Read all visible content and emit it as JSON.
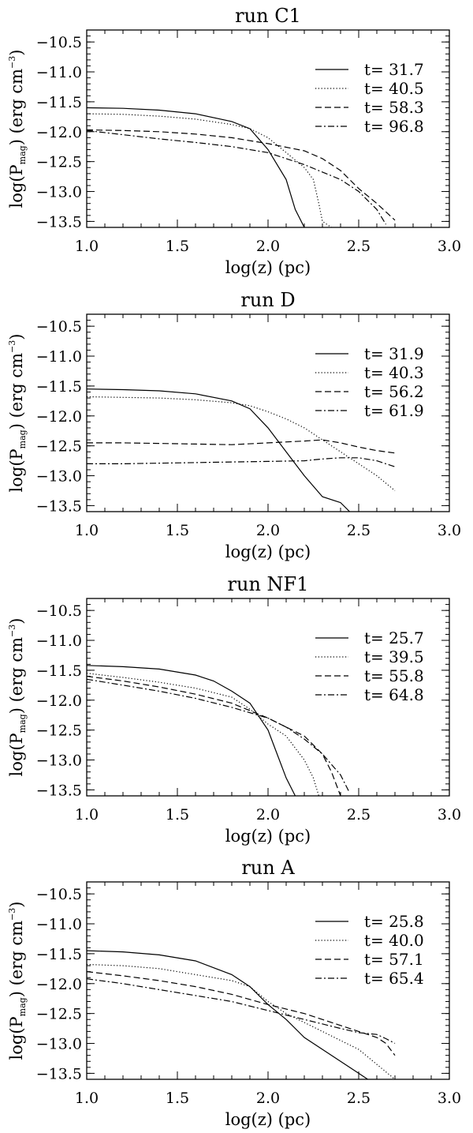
{
  "chart_data": [
    {
      "type": "line",
      "title": "run C1",
      "xlabel": "log(z) (pc)",
      "ylabel": {
        "pre": "log(P",
        "sub": "mag",
        "mid": ") (erg cm",
        "sup": "-3",
        "post": ")"
      },
      "xlim": [
        1.0,
        3.0
      ],
      "ylim": [
        -13.6,
        -10.3
      ],
      "xticks": [
        "1.0",
        "1.5",
        "2.0",
        "2.5",
        "3.0"
      ],
      "yticks": [
        "-10.5",
        "-11.0",
        "-11.5",
        "-12.0",
        "-12.5",
        "-13.0",
        "-13.5"
      ],
      "legend_position": "right",
      "series": [
        {
          "name": "t= 31.7",
          "style": "solid",
          "x": [
            1.0,
            1.2,
            1.4,
            1.6,
            1.8,
            1.9,
            2.0,
            2.1,
            2.15,
            2.2
          ],
          "y": [
            -11.6,
            -11.61,
            -11.64,
            -11.7,
            -11.83,
            -11.95,
            -12.3,
            -12.8,
            -13.3,
            -13.6
          ]
        },
        {
          "name": "t= 40.5",
          "style": "dotted",
          "x": [
            1.0,
            1.2,
            1.4,
            1.6,
            1.8,
            1.9,
            2.0,
            2.1,
            2.2,
            2.25,
            2.28,
            2.3,
            2.35
          ],
          "y": [
            -11.7,
            -11.71,
            -11.74,
            -11.79,
            -11.88,
            -11.95,
            -12.1,
            -12.35,
            -12.6,
            -12.8,
            -13.2,
            -13.5,
            -13.6
          ]
        },
        {
          "name": "t= 58.3",
          "style": "dashed",
          "x": [
            1.0,
            1.2,
            1.4,
            1.6,
            1.8,
            2.0,
            2.2,
            2.3,
            2.4,
            2.5,
            2.6,
            2.7
          ],
          "y": [
            -11.97,
            -11.98,
            -12.0,
            -12.04,
            -12.1,
            -12.2,
            -12.32,
            -12.45,
            -12.65,
            -12.95,
            -13.2,
            -13.48
          ]
        },
        {
          "name": "t= 96.8",
          "style": "dashdot",
          "x": [
            1.0,
            1.2,
            1.4,
            1.6,
            1.8,
            2.0,
            2.2,
            2.4,
            2.5,
            2.6,
            2.65
          ],
          "y": [
            -11.98,
            -12.05,
            -12.12,
            -12.18,
            -12.25,
            -12.35,
            -12.55,
            -12.8,
            -13.0,
            -13.3,
            -13.55
          ]
        }
      ]
    },
    {
      "type": "line",
      "title": "run D",
      "xlabel": "log(z) (pc)",
      "ylabel": {
        "pre": "log(P",
        "sub": "mag",
        "mid": ") (erg cm",
        "sup": "-3",
        "post": ")"
      },
      "xlim": [
        1.0,
        3.0
      ],
      "ylim": [
        -13.6,
        -10.3
      ],
      "xticks": [
        "1.0",
        "1.5",
        "2.0",
        "2.5",
        "3.0"
      ],
      "yticks": [
        "-10.5",
        "-11.0",
        "-11.5",
        "-12.0",
        "-12.5",
        "-13.0",
        "-13.5"
      ],
      "legend_position": "right",
      "series": [
        {
          "name": "t= 31.9",
          "style": "solid",
          "x": [
            1.0,
            1.2,
            1.4,
            1.6,
            1.8,
            1.9,
            2.0,
            2.1,
            2.2,
            2.3,
            2.4,
            2.45
          ],
          "y": [
            -11.55,
            -11.56,
            -11.58,
            -11.63,
            -11.75,
            -11.88,
            -12.2,
            -12.6,
            -13.0,
            -13.35,
            -13.45,
            -13.6
          ]
        },
        {
          "name": "t= 40.3",
          "style": "dotted",
          "x": [
            1.0,
            1.2,
            1.4,
            1.6,
            1.8,
            1.9,
            2.0,
            2.1,
            2.2,
            2.3,
            2.4,
            2.5,
            2.6,
            2.7
          ],
          "y": [
            -11.68,
            -11.69,
            -11.7,
            -11.73,
            -11.78,
            -11.83,
            -11.93,
            -12.05,
            -12.2,
            -12.4,
            -12.6,
            -12.8,
            -13.0,
            -13.25
          ]
        },
        {
          "name": "t= 56.2",
          "style": "dashed",
          "x": [
            1.0,
            1.2,
            1.4,
            1.6,
            1.8,
            2.0,
            2.2,
            2.3,
            2.4,
            2.5,
            2.6,
            2.7
          ],
          "y": [
            -12.45,
            -12.45,
            -12.46,
            -12.47,
            -12.48,
            -12.45,
            -12.42,
            -12.4,
            -12.45,
            -12.52,
            -12.58,
            -12.62
          ]
        },
        {
          "name": "t= 61.9",
          "style": "dashdot",
          "x": [
            1.0,
            1.2,
            1.4,
            1.6,
            1.8,
            2.0,
            2.2,
            2.3,
            2.4,
            2.5,
            2.6,
            2.7
          ],
          "y": [
            -12.8,
            -12.8,
            -12.79,
            -12.78,
            -12.77,
            -12.76,
            -12.75,
            -12.72,
            -12.7,
            -12.7,
            -12.75,
            -12.85
          ]
        }
      ]
    },
    {
      "type": "line",
      "title": "run NF1",
      "xlabel": "log(z) (pc)",
      "ylabel": {
        "pre": "log(P",
        "sub": "mag",
        "mid": ") (erg cm",
        "sup": "-3",
        "post": ")"
      },
      "xlim": [
        1.0,
        3.0
      ],
      "ylim": [
        -13.6,
        -10.3
      ],
      "xticks": [
        "1.0",
        "1.5",
        "2.0",
        "2.5",
        "3.0"
      ],
      "yticks": [
        "-10.5",
        "-11.0",
        "-11.5",
        "-12.0",
        "-12.5",
        "-13.0",
        "-13.5"
      ],
      "legend_position": "right",
      "series": [
        {
          "name": "t= 25.7",
          "style": "solid",
          "x": [
            1.0,
            1.2,
            1.4,
            1.6,
            1.7,
            1.8,
            1.9,
            2.0,
            2.05,
            2.1,
            2.15
          ],
          "y": [
            -11.42,
            -11.44,
            -11.48,
            -11.58,
            -11.68,
            -11.85,
            -12.05,
            -12.5,
            -12.9,
            -13.3,
            -13.6
          ]
        },
        {
          "name": "t= 39.5",
          "style": "dotted",
          "x": [
            1.0,
            1.2,
            1.4,
            1.6,
            1.8,
            1.9,
            2.0,
            2.1,
            2.2,
            2.25,
            2.28
          ],
          "y": [
            -11.55,
            -11.62,
            -11.7,
            -11.8,
            -11.95,
            -12.15,
            -12.4,
            -12.6,
            -13.0,
            -13.3,
            -13.6
          ]
        },
        {
          "name": "t= 55.8",
          "style": "dashed",
          "x": [
            1.0,
            1.2,
            1.4,
            1.6,
            1.8,
            2.0,
            2.1,
            2.2,
            2.3,
            2.35,
            2.4
          ],
          "y": [
            -11.6,
            -11.68,
            -11.78,
            -11.9,
            -12.05,
            -12.3,
            -12.45,
            -12.6,
            -12.9,
            -13.2,
            -13.6
          ]
        },
        {
          "name": "t= 64.8",
          "style": "dashdot",
          "x": [
            1.0,
            1.2,
            1.4,
            1.6,
            1.8,
            2.0,
            2.1,
            2.2,
            2.3,
            2.4,
            2.45
          ],
          "y": [
            -11.65,
            -11.75,
            -11.85,
            -11.97,
            -12.12,
            -12.3,
            -12.45,
            -12.65,
            -12.9,
            -13.25,
            -13.55
          ]
        }
      ]
    },
    {
      "type": "line",
      "title": "run A",
      "xlabel": "log(z) (pc)",
      "ylabel": {
        "pre": "log(P",
        "sub": "mag",
        "mid": ") (erg cm",
        "sup": "-3",
        "post": ")"
      },
      "xlim": [
        1.0,
        3.0
      ],
      "ylim": [
        -13.6,
        -10.3
      ],
      "xticks": [
        "1.0",
        "1.5",
        "2.0",
        "2.5",
        "3.0"
      ],
      "yticks": [
        "-10.5",
        "-11.0",
        "-11.5",
        "-12.0",
        "-12.5",
        "-13.0",
        "-13.5"
      ],
      "legend_position": "right",
      "series": [
        {
          "name": "t= 25.8",
          "style": "solid",
          "x": [
            1.0,
            1.2,
            1.4,
            1.6,
            1.8,
            1.9,
            2.0,
            2.1,
            2.2,
            2.3,
            2.4,
            2.5,
            2.55
          ],
          "y": [
            -11.45,
            -11.47,
            -11.52,
            -11.62,
            -11.85,
            -12.05,
            -12.35,
            -12.6,
            -12.9,
            -13.1,
            -13.3,
            -13.5,
            -13.6
          ]
        },
        {
          "name": "t= 40.0",
          "style": "dotted",
          "x": [
            1.0,
            1.2,
            1.4,
            1.6,
            1.8,
            1.9,
            2.0,
            2.1,
            2.2,
            2.3,
            2.4,
            2.5,
            2.6,
            2.7
          ],
          "y": [
            -11.68,
            -11.7,
            -11.75,
            -11.85,
            -11.95,
            -12.05,
            -12.3,
            -12.5,
            -12.65,
            -12.8,
            -12.95,
            -13.1,
            -13.35,
            -13.6
          ]
        },
        {
          "name": "t= 57.1",
          "style": "dashed",
          "x": [
            1.0,
            1.2,
            1.4,
            1.6,
            1.8,
            2.0,
            2.2,
            2.4,
            2.5,
            2.6,
            2.65,
            2.7
          ],
          "y": [
            -11.8,
            -11.87,
            -11.95,
            -12.05,
            -12.18,
            -12.35,
            -12.5,
            -12.7,
            -12.8,
            -12.9,
            -13.0,
            -13.2
          ]
        },
        {
          "name": "t= 65.4",
          "style": "dashdot",
          "x": [
            1.0,
            1.2,
            1.4,
            1.6,
            1.8,
            2.0,
            2.2,
            2.4,
            2.5,
            2.6,
            2.65,
            2.7
          ],
          "y": [
            -11.92,
            -12.0,
            -12.1,
            -12.2,
            -12.3,
            -12.45,
            -12.6,
            -12.75,
            -12.82,
            -12.85,
            -12.92,
            -13.0
          ]
        }
      ]
    }
  ]
}
